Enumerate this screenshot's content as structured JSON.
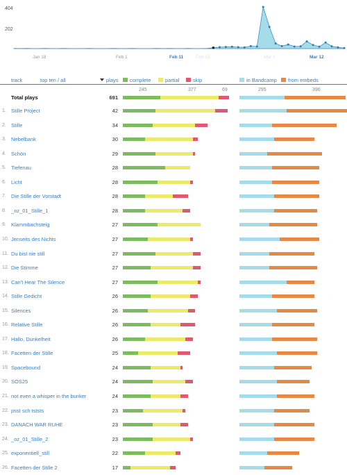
{
  "header": {
    "track": "track",
    "topten": "top ten / all",
    "plays": "plays",
    "complete": "complete",
    "partial": "partial",
    "skip": "skip",
    "band": "in Bandcamp",
    "embeds": "from embeds"
  },
  "colors": {
    "complete": "#7cbb5e",
    "partial": "#ecea6a",
    "skip": "#df5a6e",
    "band": "#a4dce9",
    "embeds": "#e48a46",
    "link": "#3b7fbf"
  },
  "totals_labels": {
    "complete": "245",
    "partial": "377",
    "skip": "69",
    "band": "295",
    "embeds": "396"
  },
  "total": {
    "label": "Total plays",
    "plays": "691",
    "complete": 245,
    "partial": 377,
    "skip": 69,
    "band": 295,
    "embeds": 396
  },
  "tracks": [
    {
      "n": "1.",
      "name": "Stille Project",
      "plays": "42",
      "complete": 13,
      "partial": 24,
      "skip": 5,
      "band": 19,
      "embeds": 29
    },
    {
      "n": "2.",
      "name": "Stille",
      "plays": "34",
      "complete": 12,
      "partial": 17,
      "skip": 5,
      "band": 13,
      "embeds": 26
    },
    {
      "n": "3.",
      "name": "Nebelbank",
      "plays": "30",
      "complete": 9,
      "partial": 19,
      "skip": 2,
      "band": 14,
      "embeds": 16
    },
    {
      "n": "4.",
      "name": "Schön",
      "plays": "29",
      "complete": 13,
      "partial": 15,
      "skip": 1,
      "band": 11,
      "embeds": 22
    },
    {
      "n": "5.",
      "name": "Tiefenau",
      "plays": "28",
      "complete": 17,
      "partial": 10,
      "skip": 0,
      "band": 13,
      "embeds": 19
    },
    {
      "n": "6.",
      "name": "Licht",
      "plays": "28",
      "complete": 14,
      "partial": 13,
      "skip": 1,
      "band": 13,
      "embeds": 19
    },
    {
      "n": "7.",
      "name": "Die Stille der Vorstadt",
      "plays": "28",
      "complete": 9,
      "partial": 11,
      "skip": 6,
      "band": 14,
      "embeds": 18
    },
    {
      "n": "8.",
      "name": "_oz_01_Stille_1",
      "plays": "28",
      "complete": 9,
      "partial": 15,
      "skip": 3,
      "band": 14,
      "embeds": 17
    },
    {
      "n": "9.",
      "name": "Klammbachsteig",
      "plays": "27",
      "complete": 14,
      "partial": 17,
      "skip": 0,
      "band": 12,
      "embeds": 19
    },
    {
      "n": "10.",
      "name": "Jenseits des Nichts",
      "plays": "27",
      "complete": 10,
      "partial": 17,
      "skip": 1,
      "band": 16,
      "embeds": 16
    },
    {
      "n": "11.",
      "name": "Du bist nie still",
      "plays": "27",
      "complete": 13,
      "partial": 15,
      "skip": 3,
      "band": 12,
      "embeds": 18
    },
    {
      "n": "12.",
      "name": "Die Stimme",
      "plays": "27",
      "complete": 11,
      "partial": 17,
      "skip": 3,
      "band": 12,
      "embeds": 19
    },
    {
      "n": "13.",
      "name": "Can't Hear The Silence",
      "plays": "27",
      "complete": 14,
      "partial": 16,
      "skip": 1,
      "band": 19,
      "embeds": 11
    },
    {
      "n": "14.",
      "name": "Stille Gedicht",
      "plays": "26",
      "complete": 11,
      "partial": 16,
      "skip": 3,
      "band": 13,
      "embeds": 17
    },
    {
      "n": "15.",
      "name": "Silences",
      "plays": "26",
      "complete": 10,
      "partial": 16,
      "skip": 3,
      "band": 15,
      "embeds": 16
    },
    {
      "n": "16.",
      "name": "Relative Stille",
      "plays": "26",
      "complete": 11,
      "partial": 12,
      "skip": 6,
      "band": 13,
      "embeds": 17
    },
    {
      "n": "17.",
      "name": "Hallo, Dunkelheit",
      "plays": "26",
      "complete": 9,
      "partial": 16,
      "skip": 3,
      "band": 13,
      "embeds": 18
    },
    {
      "n": "18.",
      "name": "Facetten der Stille",
      "plays": "25",
      "complete": 6,
      "partial": 16,
      "skip": 5,
      "band": 15,
      "embeds": 16
    },
    {
      "n": "19.",
      "name": "Spacebound",
      "plays": "24",
      "complete": 11,
      "partial": 12,
      "skip": 1,
      "band": 14,
      "embeds": 15
    },
    {
      "n": "20.",
      "name": "SOS25",
      "plays": "24",
      "complete": 12,
      "partial": 13,
      "skip": 3,
      "band": 15,
      "embeds": 13
    },
    {
      "n": "21.",
      "name": "not even a whisper in the bunker",
      "plays": "24",
      "complete": 11,
      "partial": 12,
      "skip": 3,
      "band": 15,
      "embeds": 15
    },
    {
      "n": "22.",
      "name": "psst sch tststs",
      "plays": "23",
      "complete": 8,
      "partial": 16,
      "skip": 1,
      "band": 14,
      "embeds": 14
    },
    {
      "n": "23.",
      "name": "DANACH WAR RUHE",
      "plays": "23",
      "complete": 12,
      "partial": 11,
      "skip": 3,
      "band": 14,
      "embeds": 16
    },
    {
      "n": "24.",
      "name": "_oz_01_Stille_2",
      "plays": "23",
      "complete": 12,
      "partial": 15,
      "skip": 1,
      "band": 14,
      "embeds": 16
    },
    {
      "n": "25.",
      "name": "exponentiell_still",
      "plays": "22",
      "complete": 9,
      "partial": 12,
      "skip": 2,
      "band": 11,
      "embeds": 13
    },
    {
      "n": "26.",
      "name": "Facetten der Stille 2",
      "plays": "17",
      "complete": 3,
      "partial": 16,
      "skip": 2,
      "band": 10,
      "embeds": 11
    }
  ],
  "timeline": {
    "ymax_label": "404",
    "ymid_label": "202",
    "x_labels": [
      "Jan 18",
      "Feb 1",
      "Feb 11",
      "Feb 15",
      "Mar 1",
      "Mar 12"
    ],
    "series": [
      2,
      1,
      2,
      1,
      1,
      2,
      1,
      1,
      2,
      1,
      1,
      1,
      2,
      1,
      1,
      1,
      2,
      1,
      1,
      2,
      1,
      1,
      1,
      2,
      1,
      2,
      1,
      1,
      2,
      1,
      1,
      2,
      8,
      14,
      16,
      18,
      14,
      12,
      24,
      20,
      404,
      210,
      50,
      24,
      40,
      20,
      22,
      70,
      36,
      18,
      60,
      22,
      12,
      5
    ]
  }
}
